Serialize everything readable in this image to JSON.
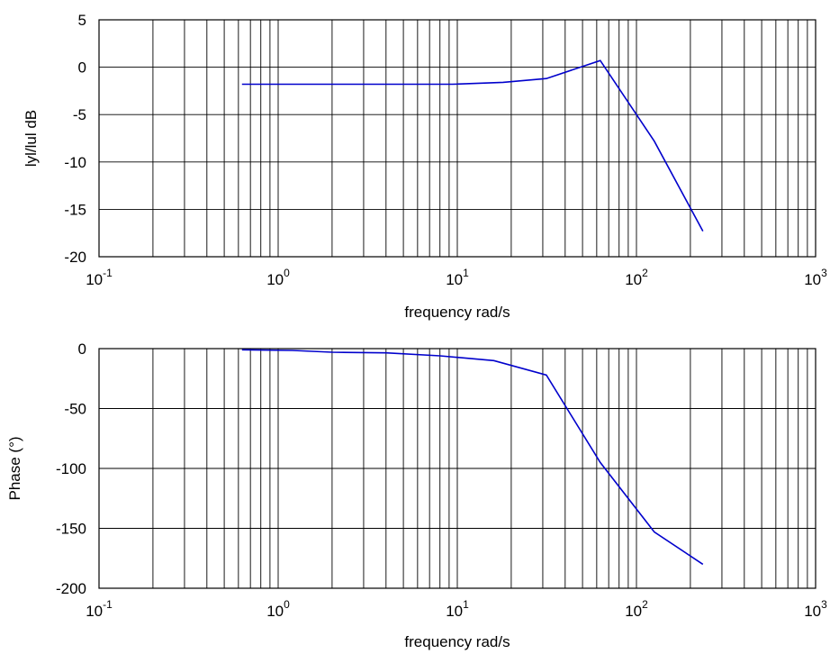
{
  "chart_data": [
    {
      "type": "line",
      "xlabel": "frequency rad/s",
      "ylabel": "lyl/lul dB",
      "xscale": "log",
      "xlim": [
        0.1,
        1000
      ],
      "ylim": [
        -20,
        5
      ],
      "yticks": [
        5,
        0,
        -5,
        -10,
        -15,
        -20
      ],
      "xtick_labels": [
        {
          "base": "10",
          "exp": "-1"
        },
        {
          "base": "10",
          "exp": "0"
        },
        {
          "base": "10",
          "exp": "1"
        },
        {
          "base": "10",
          "exp": "2"
        },
        {
          "base": "10",
          "exp": "3"
        }
      ],
      "grid": true,
      "line_color": "#0000cc",
      "series": [
        {
          "x": [
            0.628,
            2,
            5,
            9.4,
            18,
            31.4,
            62.8,
            125.7,
            235
          ],
          "y": [
            -1.8,
            -1.8,
            -1.8,
            -1.8,
            -1.6,
            -1.2,
            0.7,
            -7.8,
            -17.3
          ]
        }
      ]
    },
    {
      "type": "line",
      "xlabel": "frequency rad/s",
      "ylabel": "Phase (°)",
      "xscale": "log",
      "xlim": [
        0.1,
        1000
      ],
      "ylim": [
        -200,
        0
      ],
      "yticks": [
        0,
        -50,
        -100,
        -150,
        -200
      ],
      "xtick_labels": [
        {
          "base": "10",
          "exp": "-1"
        },
        {
          "base": "10",
          "exp": "0"
        },
        {
          "base": "10",
          "exp": "1"
        },
        {
          "base": "10",
          "exp": "2"
        },
        {
          "base": "10",
          "exp": "3"
        }
      ],
      "grid": true,
      "line_color": "#0000cc",
      "series": [
        {
          "x": [
            0.628,
            1.2,
            2,
            4,
            8,
            16,
            31.4,
            62.8,
            125.7,
            235
          ],
          "y": [
            -1,
            -1.5,
            -3,
            -3.5,
            -6,
            -10,
            -22,
            -95,
            -153,
            -180
          ]
        }
      ]
    }
  ]
}
